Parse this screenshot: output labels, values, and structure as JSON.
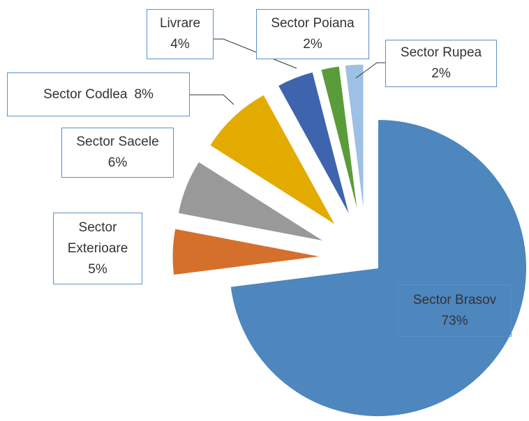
{
  "chart_data": {
    "type": "pie",
    "categories": [
      "Sector Brasov",
      "Sector Exterioare",
      "Sector Sacele",
      "Sector Codlea",
      "Livrare",
      "Sector Poiana",
      "Sector Rupea"
    ],
    "values": [
      73,
      5,
      6,
      8,
      4,
      2,
      2
    ],
    "value_labels": [
      "73%",
      "5%",
      "6%",
      "8%",
      "4%",
      "2%",
      "2%"
    ],
    "colors": [
      "#4e86be",
      "#d4702c",
      "#999999",
      "#e3ab00",
      "#3e64ae",
      "#5a9c3a",
      "#9dc0e5"
    ]
  }
}
